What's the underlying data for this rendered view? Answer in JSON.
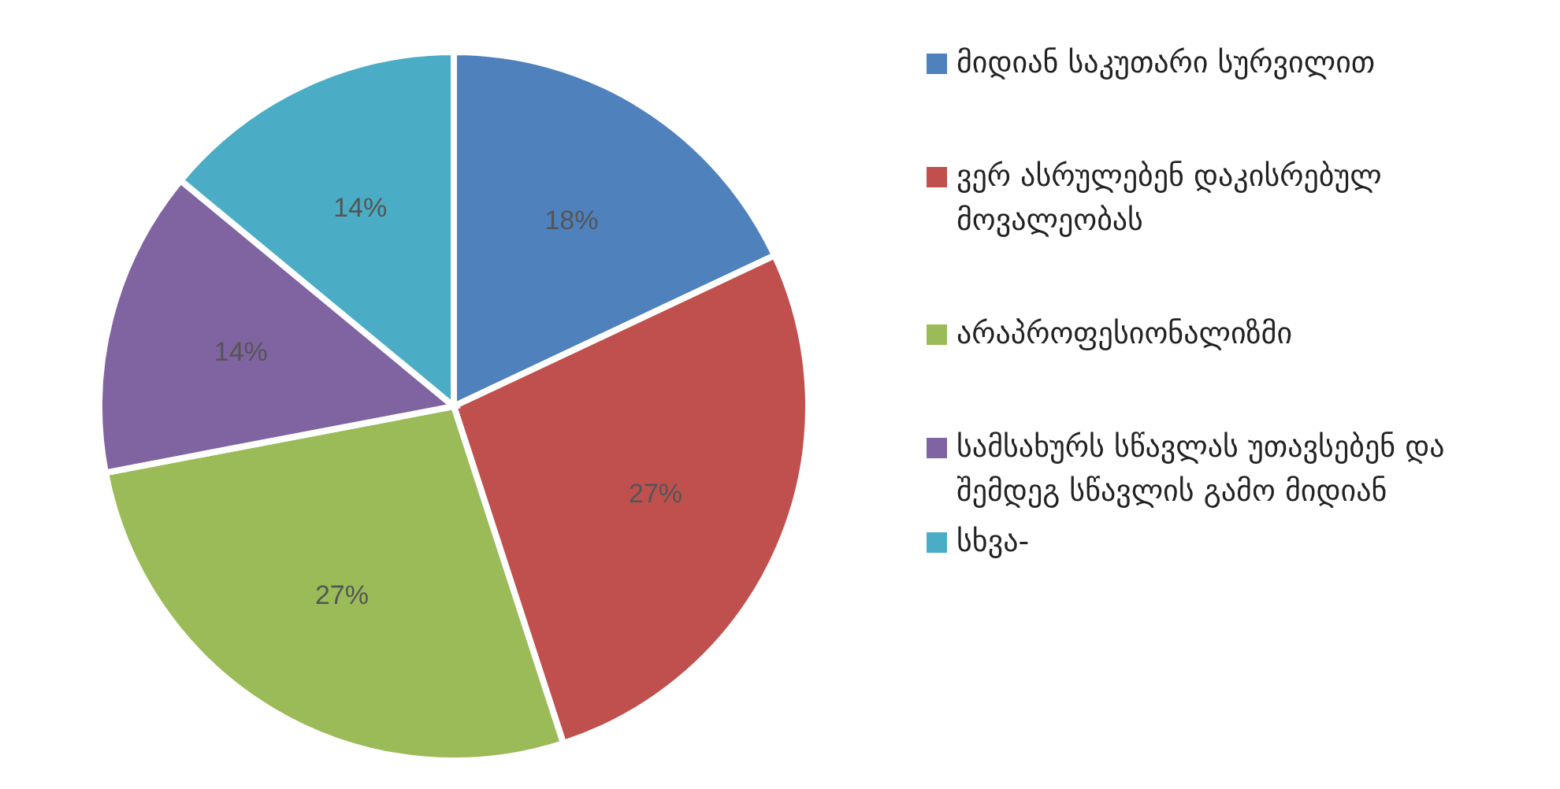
{
  "chart_data": {
    "type": "pie",
    "categories": [
      "მიდიან საკუთარი სურვილით",
      "ვერ ასრულებენ დაკისრებულ მოვალეობას",
      "არაპროფესიონალიზმი",
      "სამსახურს სწავლას უთავსებენ და შემდეგ სწავლის გამო მიდიან",
      "სხვა-"
    ],
    "values": [
      18,
      27,
      27,
      14,
      14
    ],
    "colors": [
      "#4f81bd",
      "#c0504d",
      "#9bbb59",
      "#8064a2",
      "#4bacc6"
    ],
    "value_labels": [
      "18%",
      "27%",
      "27%",
      "14%",
      "14%"
    ],
    "legend": "right"
  }
}
